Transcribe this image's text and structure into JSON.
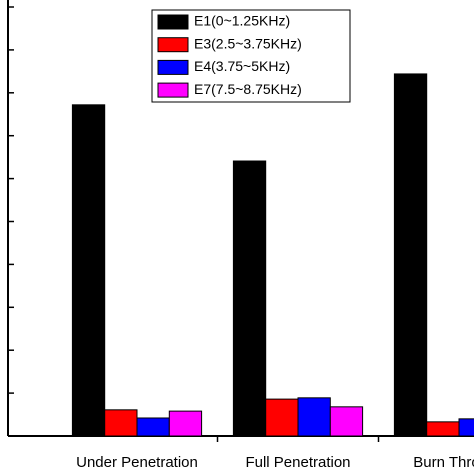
{
  "chart_data": {
    "type": "bar",
    "categories": [
      "Under Penetration",
      "Full Penetration",
      "Burn Through"
    ],
    "series": [
      {
        "name": "E1(0~1.25KHz)",
        "color": "#000000",
        "values": [
          7.72,
          6.41,
          8.44
        ]
      },
      {
        "name": "E3(2.5~3.75KHz)",
        "color": "#ff0000",
        "values": [
          0.61,
          0.86,
          0.33
        ]
      },
      {
        "name": "E4(3.75~5KHz)",
        "color": "#0000ff",
        "values": [
          0.42,
          0.89,
          0.4
        ]
      },
      {
        "name": "E7(7.5~8.75KHz)",
        "color": "#ff00ff",
        "values": [
          0.58,
          0.68,
          null
        ]
      }
    ],
    "ylim": [
      0,
      10
    ],
    "yticks": [
      0,
      1,
      2,
      3,
      4,
      5,
      6,
      7,
      8,
      9,
      10
    ],
    "legend": "top-right"
  }
}
